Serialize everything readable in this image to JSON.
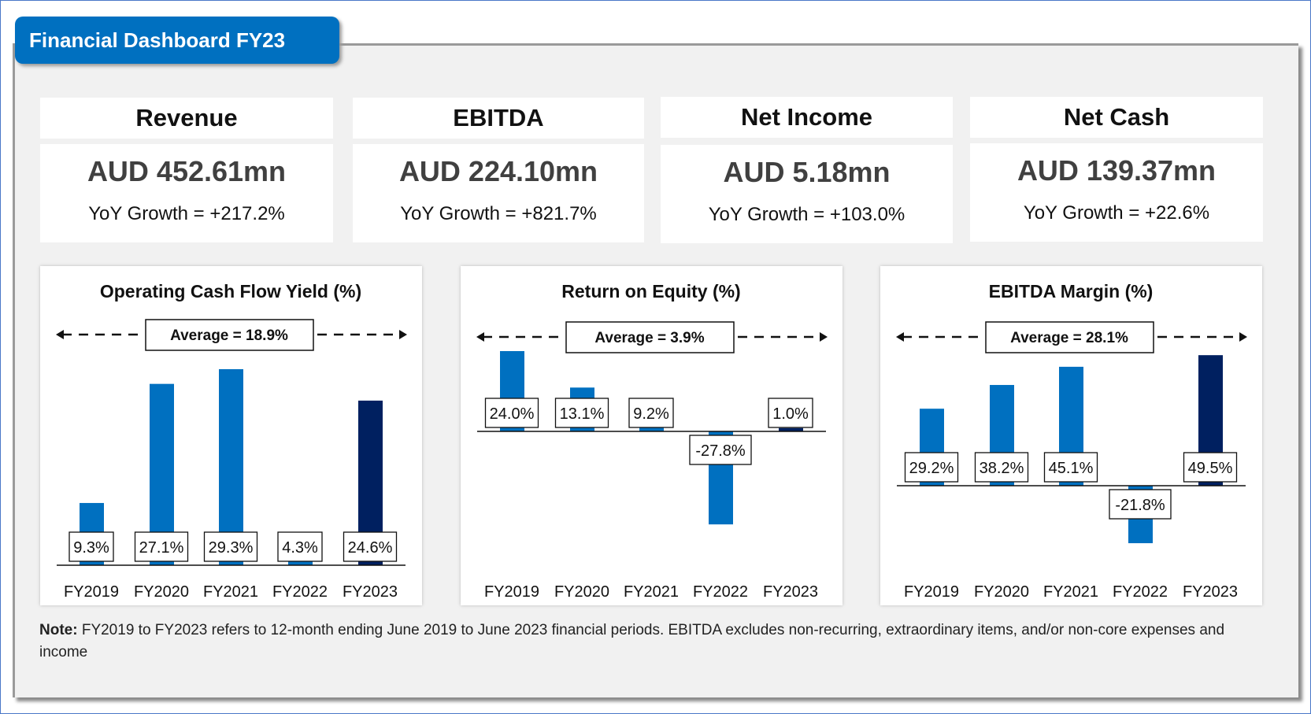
{
  "title": "Financial Dashboard FY23",
  "kpis": [
    {
      "label": "Revenue",
      "value": "AUD 452.61mn",
      "growth": "YoY Growth = +217.2%"
    },
    {
      "label": "EBITDA",
      "value": "AUD 224.10mn",
      "growth": "YoY Growth = +821.7%"
    },
    {
      "label": "Net Income",
      "value": "AUD 5.18mn",
      "growth": "YoY Growth = +103.0%"
    },
    {
      "label": "Net Cash",
      "value": "AUD 139.37mn",
      "growth": "YoY Growth = +22.6%"
    }
  ],
  "colors": {
    "bar": "#0070C0",
    "highlight": "#002060",
    "accent": "#0070C0"
  },
  "chart_data": [
    {
      "type": "bar",
      "title": "Operating Cash Flow Yield (%)",
      "average_label": "Average = 18.9%",
      "categories": [
        "FY2019",
        "FY2020",
        "FY2021",
        "FY2022",
        "FY2023"
      ],
      "values": [
        9.3,
        27.1,
        29.3,
        4.3,
        24.6
      ],
      "labels": [
        "9.3%",
        "27.1%",
        "29.3%",
        "4.3%",
        "24.6%"
      ],
      "highlight_index": 4
    },
    {
      "type": "bar",
      "title": "Return on Equity (%)",
      "average_label": "Average = 3.9%",
      "categories": [
        "FY2019",
        "FY2020",
        "FY2021",
        "FY2022",
        "FY2023"
      ],
      "values": [
        24.0,
        13.1,
        9.2,
        -27.8,
        1.0
      ],
      "labels": [
        "24.0%",
        "13.1%",
        "9.2%",
        "-27.8%",
        "1.0%"
      ],
      "highlight_index": 4
    },
    {
      "type": "bar",
      "title": "EBITDA Margin (%)",
      "average_label": "Average = 28.1%",
      "categories": [
        "FY2019",
        "FY2020",
        "FY2021",
        "FY2022",
        "FY2023"
      ],
      "values": [
        29.2,
        38.2,
        45.1,
        -21.8,
        49.5
      ],
      "labels": [
        "29.2%",
        "38.2%",
        "45.1%",
        "-21.8%",
        "49.5%"
      ],
      "highlight_index": 4
    }
  ],
  "note": {
    "bold": "Note:",
    "text": " FY2019 to FY2023 refers to 12-month ending June 2019 to June 2023 financial periods. EBITDA excludes non-recurring, extraordinary items, and/or non-core expenses and income"
  }
}
